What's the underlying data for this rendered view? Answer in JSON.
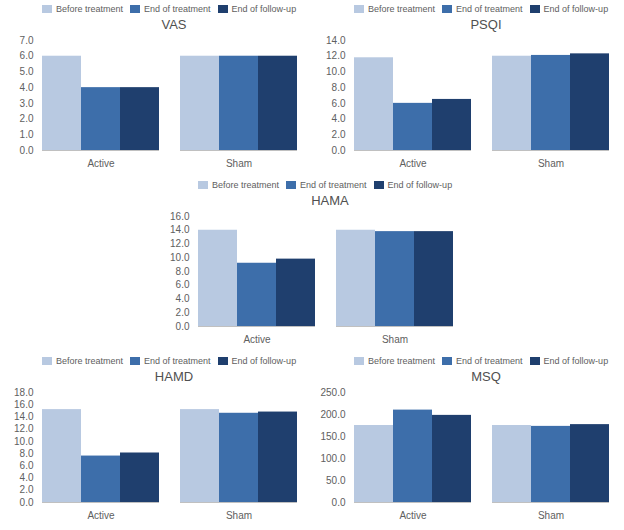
{
  "chart_data": [
    {
      "type": "bar",
      "title": "VAS",
      "categories": [
        "Active",
        "Sham"
      ],
      "series": [
        {
          "name": "Before treatment",
          "color": "#b8c9e1",
          "values": [
            6.0,
            6.0
          ]
        },
        {
          "name": "End of treatment",
          "color": "#3d6eaa",
          "values": [
            4.0,
            6.0
          ]
        },
        {
          "name": "End of follow-up",
          "color": "#1f3f6e",
          "values": [
            4.0,
            6.0
          ]
        }
      ],
      "ylim": [
        0,
        7.0
      ],
      "yticks": [
        {
          "value": 0,
          "label": "0.0"
        },
        {
          "value": 1,
          "label": "1.0"
        },
        {
          "value": 2,
          "label": "2.0"
        },
        {
          "value": 3,
          "label": "3.0"
        },
        {
          "value": 4,
          "label": "4.0"
        },
        {
          "value": 5,
          "label": "5.0"
        },
        {
          "value": 6,
          "label": "6.0"
        },
        {
          "value": 7,
          "label": "7.0"
        }
      ],
      "grid": false,
      "legend": "top"
    },
    {
      "type": "bar",
      "title": "PSQI",
      "categories": [
        "Active",
        "Sham"
      ],
      "series": [
        {
          "name": "Before treatment",
          "color": "#b8c9e1",
          "values": [
            11.8,
            12.0
          ]
        },
        {
          "name": "End of treatment",
          "color": "#3d6eaa",
          "values": [
            6.0,
            12.1
          ]
        },
        {
          "name": "End of follow-up",
          "color": "#1f3f6e",
          "values": [
            6.5,
            12.3
          ]
        }
      ],
      "ylim": [
        0,
        14.0
      ],
      "yticks": [
        {
          "value": 0,
          "label": "0.0"
        },
        {
          "value": 2,
          "label": "2.0"
        },
        {
          "value": 4,
          "label": "4.0"
        },
        {
          "value": 6,
          "label": "6.0"
        },
        {
          "value": 8,
          "label": "8.0"
        },
        {
          "value": 10,
          "label": "10.0"
        },
        {
          "value": 12,
          "label": "12.0"
        },
        {
          "value": 14,
          "label": "14.0"
        }
      ],
      "grid": false,
      "legend": "top"
    },
    {
      "type": "bar",
      "title": "HAMA",
      "categories": [
        "Active",
        "Sham"
      ],
      "series": [
        {
          "name": "Before treatment",
          "color": "#b8c9e1",
          "values": [
            14.0,
            14.0
          ]
        },
        {
          "name": "End of treatment",
          "color": "#3d6eaa",
          "values": [
            9.2,
            13.8
          ]
        },
        {
          "name": "End of follow-up",
          "color": "#1f3f6e",
          "values": [
            9.8,
            13.8
          ]
        }
      ],
      "ylim": [
        0,
        16.0
      ],
      "yticks": [
        {
          "value": 0,
          "label": "0.0"
        },
        {
          "value": 2,
          "label": "2.0"
        },
        {
          "value": 4,
          "label": "4.0"
        },
        {
          "value": 6,
          "label": "6.0"
        },
        {
          "value": 8,
          "label": "8.0"
        },
        {
          "value": 10,
          "label": "10.0"
        },
        {
          "value": 12,
          "label": "12.0"
        },
        {
          "value": 14,
          "label": "14.0"
        },
        {
          "value": 16,
          "label": "16.0"
        }
      ],
      "grid": false,
      "legend": "top"
    },
    {
      "type": "bar",
      "title": "HAMD",
      "categories": [
        "Active",
        "Sham"
      ],
      "series": [
        {
          "name": "Before treatment",
          "color": "#b8c9e1",
          "values": [
            15.2,
            15.2
          ]
        },
        {
          "name": "End of treatment",
          "color": "#3d6eaa",
          "values": [
            7.6,
            14.6
          ]
        },
        {
          "name": "End of follow-up",
          "color": "#1f3f6e",
          "values": [
            8.1,
            14.8
          ]
        }
      ],
      "ylim": [
        0,
        18.0
      ],
      "yticks": [
        {
          "value": 0,
          "label": "0.0"
        },
        {
          "value": 2,
          "label": "2.0"
        },
        {
          "value": 4,
          "label": "4.0"
        },
        {
          "value": 6,
          "label": "6.0"
        },
        {
          "value": 8,
          "label": "8.0"
        },
        {
          "value": 10,
          "label": "10.0"
        },
        {
          "value": 12,
          "label": "12.0"
        },
        {
          "value": 14,
          "label": "14.0"
        },
        {
          "value": 16,
          "label": "16.0"
        },
        {
          "value": 18,
          "label": "18.0"
        }
      ],
      "grid": false,
      "legend": "top"
    },
    {
      "type": "bar",
      "title": "MSQ",
      "categories": [
        "Active",
        "Sham"
      ],
      "series": [
        {
          "name": "Before treatment",
          "color": "#b8c9e1",
          "values": [
            175.0,
            175.0
          ]
        },
        {
          "name": "End of treatment",
          "color": "#3d6eaa",
          "values": [
            210.0,
            173.0
          ]
        },
        {
          "name": "End of follow-up",
          "color": "#1f3f6e",
          "values": [
            198.0,
            177.0
          ]
        }
      ],
      "ylim": [
        0,
        250.0
      ],
      "yticks": [
        {
          "value": 0,
          "label": "0.0"
        },
        {
          "value": 50,
          "label": "50.0"
        },
        {
          "value": 100,
          "label": "100.0"
        },
        {
          "value": 150,
          "label": "150.0"
        },
        {
          "value": 200,
          "label": "200.0"
        },
        {
          "value": 250,
          "label": "250.0"
        }
      ],
      "grid": false,
      "legend": "top"
    }
  ]
}
